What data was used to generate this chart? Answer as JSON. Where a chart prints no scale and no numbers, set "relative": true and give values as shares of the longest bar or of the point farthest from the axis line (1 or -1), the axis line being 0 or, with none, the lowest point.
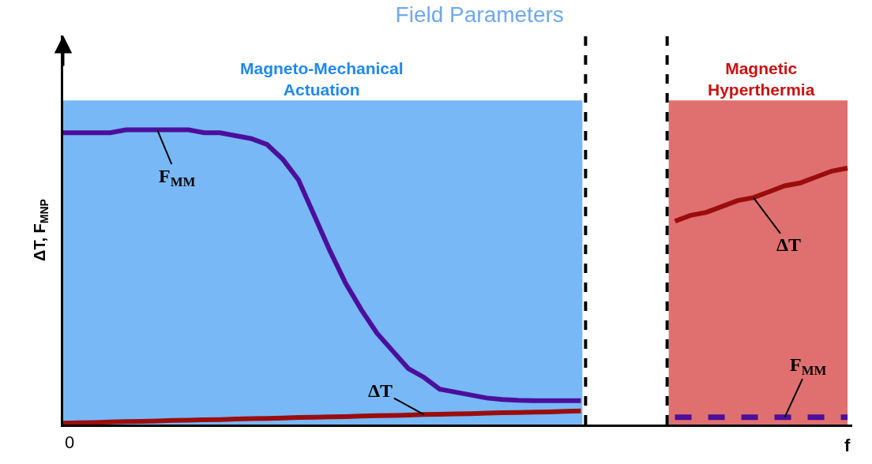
{
  "chart_data": {
    "type": "line",
    "relative": true,
    "title": "Field Parameters",
    "ylabel": "ΔT, F$_{MNP}$",
    "xlabel": "f",
    "grid": false,
    "categories": [
      null,
      null,
      null,
      null,
      null,
      null,
      null,
      null,
      null,
      null,
      null,
      null,
      null,
      null,
      null,
      null,
      null,
      null,
      null,
      null,
      null,
      null,
      null,
      null,
      null,
      null,
      null,
      null,
      null,
      null,
      null,
      null,
      null,
      null,
      null,
      null,
      null,
      null,
      null,
      null,
      null,
      null,
      null,
      null,
      null,
      null,
      null,
      null,
      null,
      null,
      null
    ],
    "series": [
      {
        "color": "#4b0f9b",
        "line_style": "solid",
        "values": [
          0.99,
          0.99,
          0.99,
          0.99,
          1.0,
          1.0,
          1.0,
          1.0,
          1.0,
          0.99,
          0.99,
          0.98,
          0.97,
          0.95,
          0.9,
          0.83,
          0.71,
          0.59,
          0.48,
          0.39,
          0.31,
          0.25,
          0.19,
          0.16,
          0.12,
          0.11,
          0.1,
          0.09,
          0.085,
          0.082,
          0.081,
          0.081,
          0.081,
          0.081,
          null,
          null,
          null,
          null,
          null,
          null,
          null,
          null,
          null,
          null,
          null,
          null,
          null,
          null,
          null,
          null,
          null
        ]
      },
      {
        "color": "#9b0d0d",
        "line_style": "solid",
        "values": [
          0.005,
          0.006,
          0.007,
          0.009,
          0.01,
          0.011,
          0.012,
          0.014,
          0.015,
          0.016,
          0.017,
          0.019,
          0.02,
          0.021,
          0.022,
          0.024,
          0.025,
          0.026,
          0.027,
          0.029,
          0.03,
          0.031,
          0.032,
          0.034,
          0.035,
          0.036,
          0.037,
          0.039,
          0.04,
          0.041,
          0.042,
          0.043,
          0.045,
          0.046,
          null,
          null,
          null,
          null,
          null,
          null,
          null,
          null,
          null,
          null,
          null,
          null,
          null,
          null,
          null,
          null,
          null
        ]
      },
      {
        "color": "#9b0d0d",
        "line_style": "solid",
        "values": [
          null,
          null,
          null,
          null,
          null,
          null,
          null,
          null,
          null,
          null,
          null,
          null,
          null,
          null,
          null,
          null,
          null,
          null,
          null,
          null,
          null,
          null,
          null,
          null,
          null,
          null,
          null,
          null,
          null,
          null,
          null,
          null,
          null,
          null,
          null,
          null,
          null,
          null,
          null,
          0.69,
          0.71,
          0.72,
          0.74,
          0.76,
          0.77,
          0.79,
          0.81,
          0.82,
          0.84,
          0.86,
          0.87
        ]
      },
      {
        "color": "#4b0f9b",
        "line_style": "dashed",
        "values": [
          null,
          null,
          null,
          null,
          null,
          null,
          null,
          null,
          null,
          null,
          null,
          null,
          null,
          null,
          null,
          null,
          null,
          null,
          null,
          null,
          null,
          null,
          null,
          null,
          null,
          null,
          null,
          null,
          null,
          null,
          null,
          null,
          null,
          null,
          null,
          null,
          null,
          null,
          null,
          0.025,
          0.025,
          0.025,
          0.025,
          0.025,
          0.025,
          0.025,
          0.025,
          0.025,
          0.025,
          0.025,
          0.025
        ]
      }
    ],
    "annotations": [
      "F$_{MM}$",
      "ΔT",
      "ΔT",
      "F$_{MM}$",
      "0",
      "Magneto-Mechanical\nActuation",
      "Magnetic\nHyperthermia"
    ]
  }
}
